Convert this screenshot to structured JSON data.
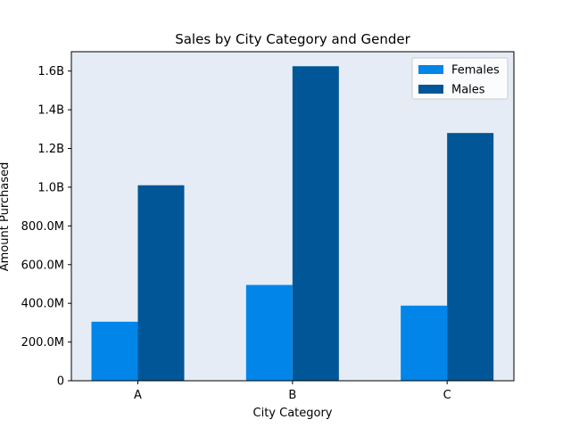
{
  "chart_data": {
    "type": "bar",
    "title": "Sales by City Category and Gender",
    "xlabel": "City Category",
    "ylabel": "Amount Purchased",
    "categories": [
      "A",
      "B",
      "C"
    ],
    "series": [
      {
        "name": "Females",
        "values": [
          305000000,
          495000000,
          388000000
        ]
      },
      {
        "name": "Males",
        "values": [
          1010000000,
          1625000000,
          1280000000
        ]
      }
    ],
    "ylim": [
      0,
      1700000000
    ],
    "yticks": [
      0,
      200000000,
      400000000,
      600000000,
      800000000,
      1000000000,
      1200000000,
      1400000000,
      1600000000
    ],
    "ytick_labels": [
      "0",
      "200.0M",
      "400.0M",
      "600.0M",
      "800.0M",
      "1.0B",
      "1.2B",
      "1.4B",
      "1.6B"
    ],
    "legend_position": "top-right",
    "grid": false
  },
  "colors": {
    "Females": "#0285e8",
    "Males": "#005696",
    "plot_background": "#e5ecf5"
  }
}
